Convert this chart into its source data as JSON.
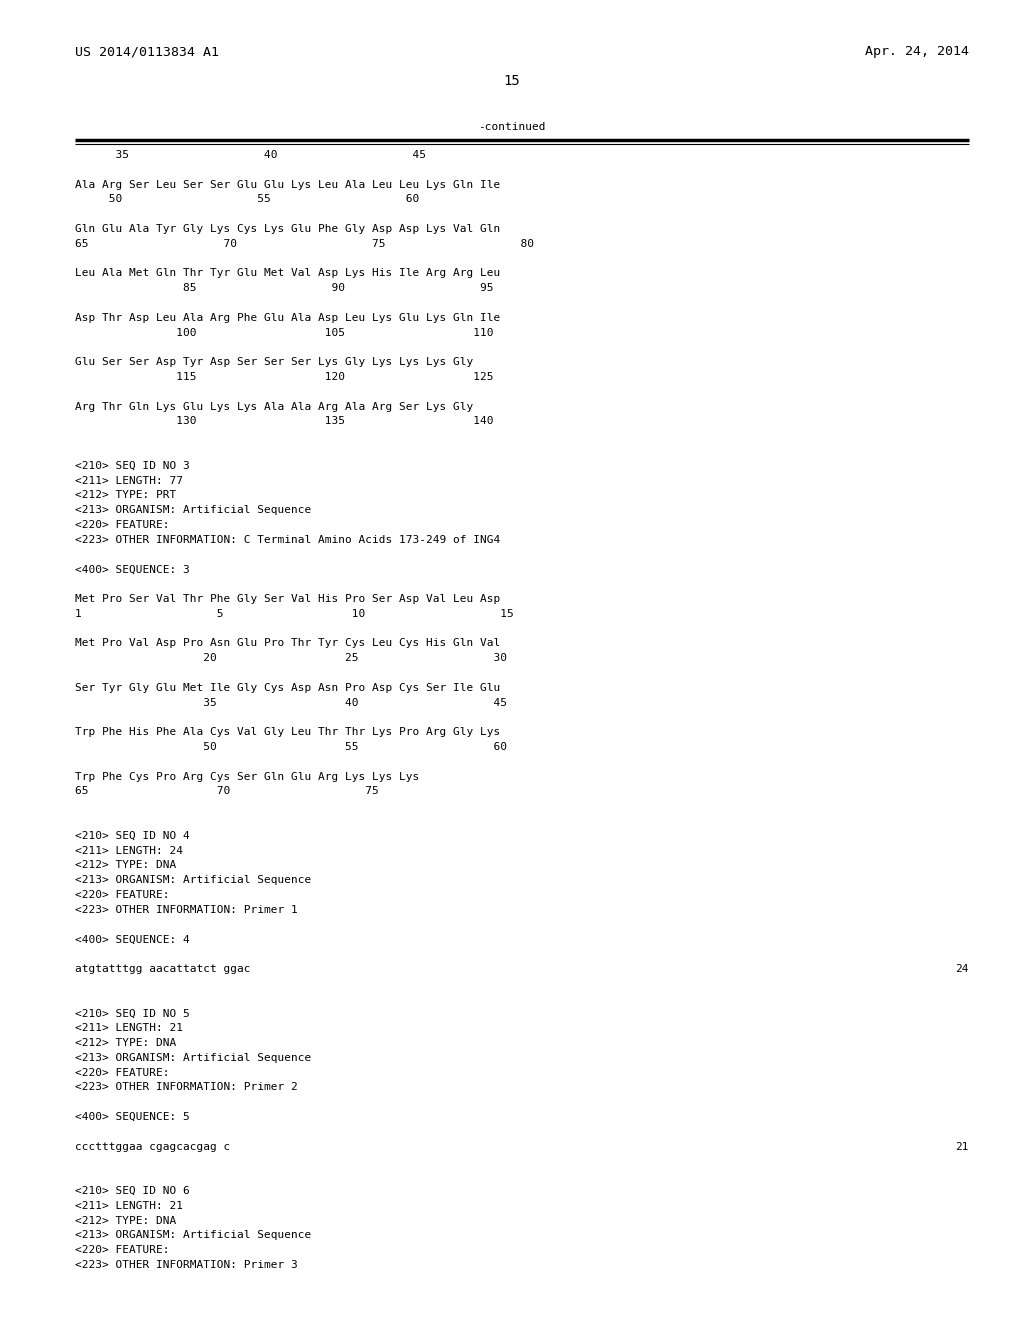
{
  "bg_color": "#ffffff",
  "header_left": "US 2014/0113834 A1",
  "header_right": "Apr. 24, 2014",
  "page_number": "15",
  "continued_label": "-continued",
  "content_lines": [
    {
      "text": "      35                    40                    45",
      "indent": 0.08,
      "style": "mono"
    },
    {
      "text": "",
      "indent": 0.08,
      "style": "mono"
    },
    {
      "text": "Ala Arg Ser Leu Ser Ser Glu Glu Lys Leu Ala Leu Leu Lys Gln Ile",
      "indent": 0.08,
      "style": "mono"
    },
    {
      "text": "     50                    55                    60",
      "indent": 0.08,
      "style": "mono"
    },
    {
      "text": "",
      "indent": 0.08,
      "style": "mono"
    },
    {
      "text": "Gln Glu Ala Tyr Gly Lys Cys Lys Glu Phe Gly Asp Asp Lys Val Gln",
      "indent": 0.08,
      "style": "mono"
    },
    {
      "text": "65                    70                    75                    80",
      "indent": 0.08,
      "style": "mono"
    },
    {
      "text": "",
      "indent": 0.08,
      "style": "mono"
    },
    {
      "text": "Leu Ala Met Gln Thr Tyr Glu Met Val Asp Lys His Ile Arg Arg Leu",
      "indent": 0.08,
      "style": "mono"
    },
    {
      "text": "                85                    90                    95",
      "indent": 0.08,
      "style": "mono"
    },
    {
      "text": "",
      "indent": 0.08,
      "style": "mono"
    },
    {
      "text": "Asp Thr Asp Leu Ala Arg Phe Glu Ala Asp Leu Lys Glu Lys Gln Ile",
      "indent": 0.08,
      "style": "mono"
    },
    {
      "text": "               100                   105                   110",
      "indent": 0.08,
      "style": "mono"
    },
    {
      "text": "",
      "indent": 0.08,
      "style": "mono"
    },
    {
      "text": "Glu Ser Ser Asp Tyr Asp Ser Ser Ser Lys Gly Lys Lys Lys Gly",
      "indent": 0.08,
      "style": "mono"
    },
    {
      "text": "               115                   120                   125",
      "indent": 0.08,
      "style": "mono"
    },
    {
      "text": "",
      "indent": 0.08,
      "style": "mono"
    },
    {
      "text": "Arg Thr Gln Lys Glu Lys Lys Ala Ala Arg Ala Arg Ser Lys Gly",
      "indent": 0.08,
      "style": "mono"
    },
    {
      "text": "               130                   135                   140",
      "indent": 0.08,
      "style": "mono"
    },
    {
      "text": "",
      "indent": 0.08,
      "style": "mono"
    },
    {
      "text": "",
      "indent": 0.08,
      "style": "mono"
    },
    {
      "text": "<210> SEQ ID NO 3",
      "indent": 0.08,
      "style": "mono"
    },
    {
      "text": "<211> LENGTH: 77",
      "indent": 0.08,
      "style": "mono"
    },
    {
      "text": "<212> TYPE: PRT",
      "indent": 0.08,
      "style": "mono"
    },
    {
      "text": "<213> ORGANISM: Artificial Sequence",
      "indent": 0.08,
      "style": "mono"
    },
    {
      "text": "<220> FEATURE:",
      "indent": 0.08,
      "style": "mono"
    },
    {
      "text": "<223> OTHER INFORMATION: C Terminal Amino Acids 173-249 of ING4",
      "indent": 0.08,
      "style": "mono"
    },
    {
      "text": "",
      "indent": 0.08,
      "style": "mono"
    },
    {
      "text": "<400> SEQUENCE: 3",
      "indent": 0.08,
      "style": "mono"
    },
    {
      "text": "",
      "indent": 0.08,
      "style": "mono"
    },
    {
      "text": "Met Pro Ser Val Thr Phe Gly Ser Val His Pro Ser Asp Val Leu Asp",
      "indent": 0.08,
      "style": "mono"
    },
    {
      "text": "1                    5                   10                    15",
      "indent": 0.08,
      "style": "mono"
    },
    {
      "text": "",
      "indent": 0.08,
      "style": "mono"
    },
    {
      "text": "Met Pro Val Asp Pro Asn Glu Pro Thr Tyr Cys Leu Cys His Gln Val",
      "indent": 0.08,
      "style": "mono"
    },
    {
      "text": "                   20                   25                    30",
      "indent": 0.08,
      "style": "mono"
    },
    {
      "text": "",
      "indent": 0.08,
      "style": "mono"
    },
    {
      "text": "Ser Tyr Gly Glu Met Ile Gly Cys Asp Asn Pro Asp Cys Ser Ile Glu",
      "indent": 0.08,
      "style": "mono"
    },
    {
      "text": "                   35                   40                    45",
      "indent": 0.08,
      "style": "mono"
    },
    {
      "text": "",
      "indent": 0.08,
      "style": "mono"
    },
    {
      "text": "Trp Phe His Phe Ala Cys Val Gly Leu Thr Thr Lys Pro Arg Gly Lys",
      "indent": 0.08,
      "style": "mono"
    },
    {
      "text": "                   50                   55                    60",
      "indent": 0.08,
      "style": "mono"
    },
    {
      "text": "",
      "indent": 0.08,
      "style": "mono"
    },
    {
      "text": "Trp Phe Cys Pro Arg Cys Ser Gln Glu Arg Lys Lys Lys",
      "indent": 0.08,
      "style": "mono"
    },
    {
      "text": "65                   70                    75",
      "indent": 0.08,
      "style": "mono"
    },
    {
      "text": "",
      "indent": 0.08,
      "style": "mono"
    },
    {
      "text": "",
      "indent": 0.08,
      "style": "mono"
    },
    {
      "text": "<210> SEQ ID NO 4",
      "indent": 0.08,
      "style": "mono"
    },
    {
      "text": "<211> LENGTH: 24",
      "indent": 0.08,
      "style": "mono"
    },
    {
      "text": "<212> TYPE: DNA",
      "indent": 0.08,
      "style": "mono"
    },
    {
      "text": "<213> ORGANISM: Artificial Sequence",
      "indent": 0.08,
      "style": "mono"
    },
    {
      "text": "<220> FEATURE:",
      "indent": 0.08,
      "style": "mono"
    },
    {
      "text": "<223> OTHER INFORMATION: Primer 1",
      "indent": 0.08,
      "style": "mono"
    },
    {
      "text": "",
      "indent": 0.08,
      "style": "mono"
    },
    {
      "text": "<400> SEQUENCE: 4",
      "indent": 0.08,
      "style": "mono"
    },
    {
      "text": "",
      "indent": 0.08,
      "style": "mono"
    },
    {
      "text": "atgtatttgg aacattatct ggac",
      "indent": 0.08,
      "style": "mono",
      "right_num": "24"
    },
    {
      "text": "",
      "indent": 0.08,
      "style": "mono"
    },
    {
      "text": "",
      "indent": 0.08,
      "style": "mono"
    },
    {
      "text": "<210> SEQ ID NO 5",
      "indent": 0.08,
      "style": "mono"
    },
    {
      "text": "<211> LENGTH: 21",
      "indent": 0.08,
      "style": "mono"
    },
    {
      "text": "<212> TYPE: DNA",
      "indent": 0.08,
      "style": "mono"
    },
    {
      "text": "<213> ORGANISM: Artificial Sequence",
      "indent": 0.08,
      "style": "mono"
    },
    {
      "text": "<220> FEATURE:",
      "indent": 0.08,
      "style": "mono"
    },
    {
      "text": "<223> OTHER INFORMATION: Primer 2",
      "indent": 0.08,
      "style": "mono"
    },
    {
      "text": "",
      "indent": 0.08,
      "style": "mono"
    },
    {
      "text": "<400> SEQUENCE: 5",
      "indent": 0.08,
      "style": "mono"
    },
    {
      "text": "",
      "indent": 0.08,
      "style": "mono"
    },
    {
      "text": "ccctttggaa cgagcacgag c",
      "indent": 0.08,
      "style": "mono",
      "right_num": "21"
    },
    {
      "text": "",
      "indent": 0.08,
      "style": "mono"
    },
    {
      "text": "",
      "indent": 0.08,
      "style": "mono"
    },
    {
      "text": "<210> SEQ ID NO 6",
      "indent": 0.08,
      "style": "mono"
    },
    {
      "text": "<211> LENGTH: 21",
      "indent": 0.08,
      "style": "mono"
    },
    {
      "text": "<212> TYPE: DNA",
      "indent": 0.08,
      "style": "mono"
    },
    {
      "text": "<213> ORGANISM: Artificial Sequence",
      "indent": 0.08,
      "style": "mono"
    },
    {
      "text": "<220> FEATURE:",
      "indent": 0.08,
      "style": "mono"
    },
    {
      "text": "<223> OTHER INFORMATION: Primer 3",
      "indent": 0.08,
      "style": "mono"
    }
  ]
}
